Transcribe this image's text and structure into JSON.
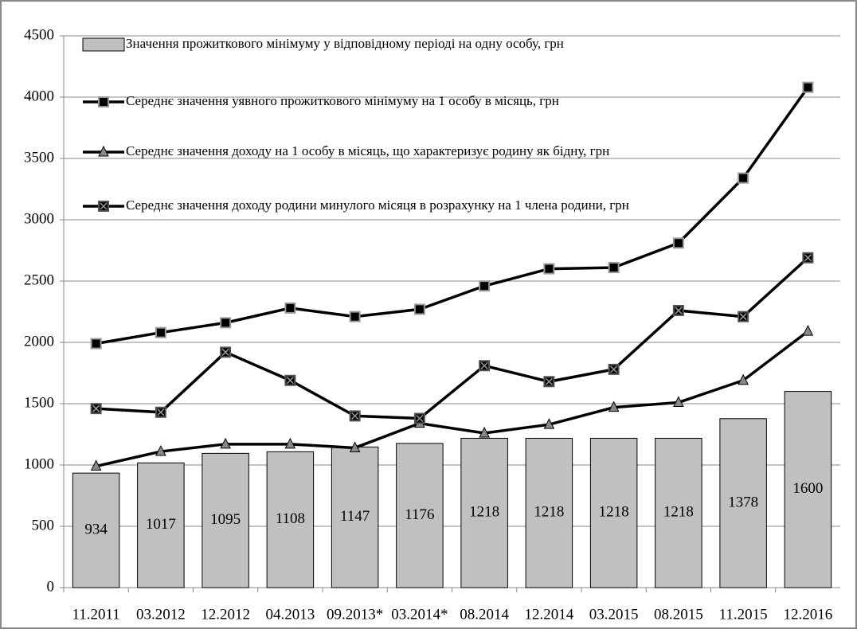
{
  "chart_data": {
    "type": "bar",
    "categories": [
      "11.2011",
      "03.2012",
      "12.2012",
      "04.2013",
      "09.2013*",
      "03.2014*",
      "08.2014",
      "12.2014",
      "03.2015",
      "08.2015",
      "11.2015",
      "12.2016"
    ],
    "series": [
      {
        "name": "Значення прожиткового мінімуму у відповідному періоді на одну особу, грн",
        "type": "bar",
        "color": "#c0c0c0",
        "values": [
          934,
          1017,
          1095,
          1108,
          1147,
          1176,
          1218,
          1218,
          1218,
          1218,
          1378,
          1600
        ]
      },
      {
        "name": "Середнє значення уявного прожиткового мінімуму на 1 особу в місяць, грн",
        "type": "line",
        "marker": "square",
        "color": "#000000",
        "values": [
          1990,
          2080,
          2160,
          2280,
          2210,
          2270,
          2460,
          2600,
          2610,
          2810,
          3340,
          4080
        ]
      },
      {
        "name": "Середнє значення доходу на 1 особу в місяць, що характеризує родину як бідну, грн",
        "type": "line",
        "marker": "triangle",
        "color": "#000000",
        "values": [
          990,
          1110,
          1170,
          1170,
          1140,
          1340,
          1260,
          1330,
          1470,
          1510,
          1690,
          2090
        ]
      },
      {
        "name": "Середнє значення доходу родини минулого місяця в розрахунку на 1 члена родини, грн",
        "type": "line",
        "marker": "x-square",
        "color": "#000000",
        "values": [
          1460,
          1430,
          1920,
          1690,
          1400,
          1380,
          1810,
          1680,
          1780,
          2260,
          2210,
          2690
        ]
      }
    ],
    "ylim": [
      0,
      4500
    ],
    "yticks": [
      0,
      500,
      1000,
      1500,
      2000,
      2500,
      3000,
      3500,
      4000,
      4500
    ],
    "grid": true,
    "legend": "top-left"
  }
}
